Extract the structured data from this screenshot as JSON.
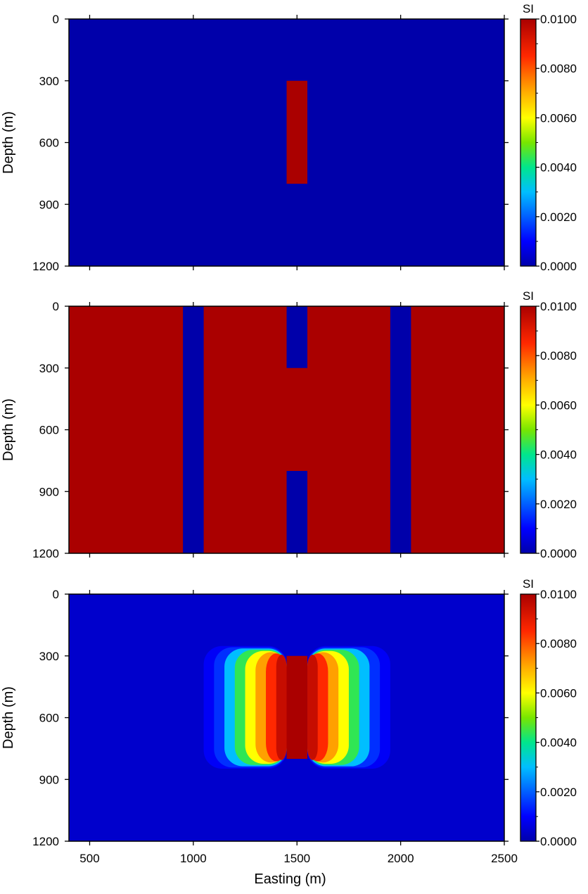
{
  "chart_data": [
    {
      "type": "heatmap",
      "panel": "top",
      "xlabel": "",
      "ylabel": "Depth (m)",
      "xlim": [
        400,
        2500
      ],
      "ylim": [
        1200,
        0
      ],
      "yticks": [
        0,
        300,
        600,
        900,
        1200
      ],
      "xticks": [
        500,
        1000,
        1500,
        2000,
        2500
      ],
      "background_value": 0.0,
      "blocks": [
        {
          "x": [
            1450,
            1550
          ],
          "y": [
            300,
            800
          ],
          "value": 0.01
        }
      ],
      "colorbar": {
        "label": "SI",
        "range": [
          0,
          0.01
        ],
        "ticks": [
          "0.0100",
          "0.0080",
          "0.0060",
          "0.0040",
          "0.0020",
          "0.0000"
        ]
      }
    },
    {
      "type": "heatmap",
      "panel": "middle",
      "xlabel": "",
      "ylabel": "Depth (m)",
      "xlim": [
        400,
        2500
      ],
      "ylim": [
        1200,
        0
      ],
      "yticks": [
        0,
        300,
        600,
        900,
        1200
      ],
      "xticks": [
        500,
        1000,
        1500,
        2000,
        2500
      ],
      "background_value": 0.01,
      "blocks": [
        {
          "x": [
            950,
            1050
          ],
          "y": [
            0,
            1200
          ],
          "value": 0.0
        },
        {
          "x": [
            1450,
            1550
          ],
          "y": [
            0,
            300
          ],
          "value": 0.0
        },
        {
          "x": [
            1450,
            1550
          ],
          "y": [
            800,
            1200
          ],
          "value": 0.0
        },
        {
          "x": [
            1950,
            2050
          ],
          "y": [
            0,
            1200
          ],
          "value": 0.0
        }
      ],
      "colorbar": {
        "label": "SI",
        "range": [
          0,
          0.01
        ],
        "ticks": [
          "0.0100",
          "0.0080",
          "0.0060",
          "0.0040",
          "0.0020",
          "0.0000"
        ]
      }
    },
    {
      "type": "heatmap",
      "panel": "bottom",
      "xlabel": "Easting (m)",
      "ylabel": "Depth (m)",
      "xlim": [
        400,
        2500
      ],
      "ylim": [
        1200,
        0
      ],
      "yticks": [
        0,
        300,
        600,
        900,
        1200
      ],
      "xticks": [
        500,
        1000,
        1500,
        2000,
        2500
      ],
      "background_value": 0.0004,
      "anomaly": {
        "core": {
          "x": [
            1450,
            1550
          ],
          "y": [
            300,
            800
          ],
          "value": 0.01
        },
        "side_profile": [
          {
            "offset": 50,
            "value": 0.0095
          },
          {
            "offset": 100,
            "value": 0.0085
          },
          {
            "offset": 150,
            "value": 0.0072
          },
          {
            "offset": 200,
            "value": 0.006
          },
          {
            "offset": 250,
            "value": 0.0044
          },
          {
            "offset": 300,
            "value": 0.003
          },
          {
            "offset": 350,
            "value": 0.0015
          },
          {
            "offset": 400,
            "value": 0.0009
          }
        ]
      },
      "colorbar": {
        "label": "SI",
        "range": [
          0,
          0.01
        ],
        "ticks": [
          "0.0100",
          "0.0080",
          "0.0060",
          "0.0040",
          "0.0020",
          "0.0000"
        ]
      }
    }
  ]
}
